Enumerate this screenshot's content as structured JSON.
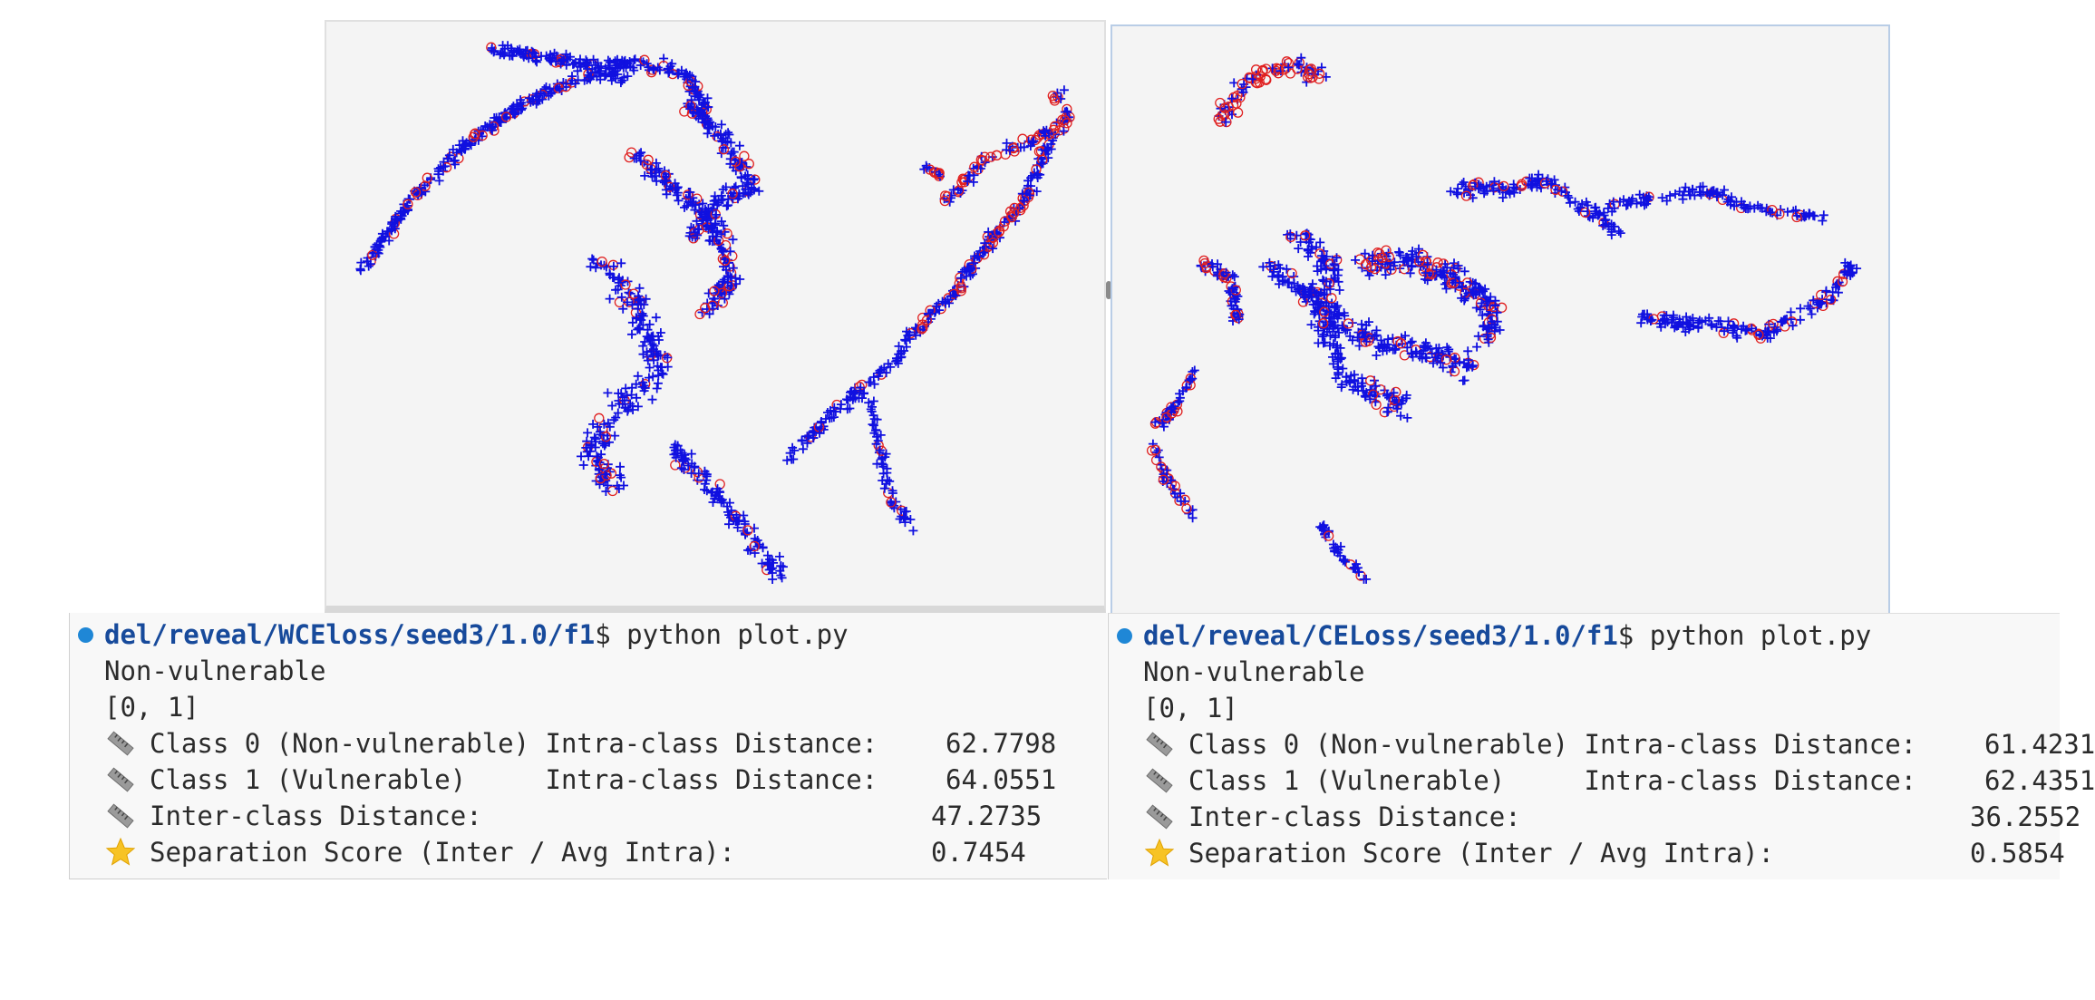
{
  "terminals": [
    {
      "prompt_path": "del/reveal/WCEloss/seed3/1.0/f1",
      "prompt_suffix": "$ python plot.py",
      "output_line1": "Non-vulnerable",
      "output_line2": "[0, 1]",
      "metrics": [
        {
          "icon": "ruler-icon",
          "label": "Class 0 (Non-vulnerable) Intra-class Distance:",
          "value": "62.7798"
        },
        {
          "icon": "ruler-icon",
          "label": "Class 1 (Vulnerable)     Intra-class Distance:",
          "value": "64.0551"
        },
        {
          "icon": "ruler-icon",
          "label": "Inter-class Distance:",
          "value": "47.2735"
        },
        {
          "icon": "star-icon",
          "label": "Separation Score (Inter / Avg Intra):",
          "value": "0.7454"
        }
      ]
    },
    {
      "prompt_path": "del/reveal/CELoss/seed3/1.0/f1",
      "prompt_suffix": "$ python plot.py",
      "output_line1": "Non-vulnerable",
      "output_line2": "[0, 1]",
      "metrics": [
        {
          "icon": "ruler-icon",
          "label": "Class 0 (Non-vulnerable) Intra-class Distance:",
          "value": "61.4231"
        },
        {
          "icon": "ruler-icon",
          "label": "Class 1 (Vulnerable)     Intra-class Distance:",
          "value": "62.4351"
        },
        {
          "icon": "ruler-icon",
          "label": "Inter-class Distance:",
          "value": "36.2552"
        },
        {
          "icon": "star-icon",
          "label": "Separation Score (Inter / Avg Intra):",
          "value": "0.5854"
        }
      ]
    }
  ],
  "colors": {
    "class0_marker": "#1010e0",
    "class1_marker": "#e02020",
    "prompt_path": "#174a9b",
    "prompt_dot": "#1f87d6"
  },
  "chart_data": [
    {
      "type": "scatter",
      "title": "",
      "xlabel": "",
      "ylabel": "",
      "series": [
        {
          "marker": "plus",
          "color": "#1010e0",
          "points": []
        },
        {
          "marker": "circle",
          "color": "#e02020",
          "points": []
        }
      ]
    },
    {
      "type": "scatter",
      "title": "",
      "xlabel": "",
      "ylabel": "",
      "series": [
        {
          "marker": "plus",
          "color": "#1010e0",
          "points": []
        },
        {
          "marker": "circle",
          "color": "#e02020",
          "points": []
        }
      ]
    }
  ]
}
